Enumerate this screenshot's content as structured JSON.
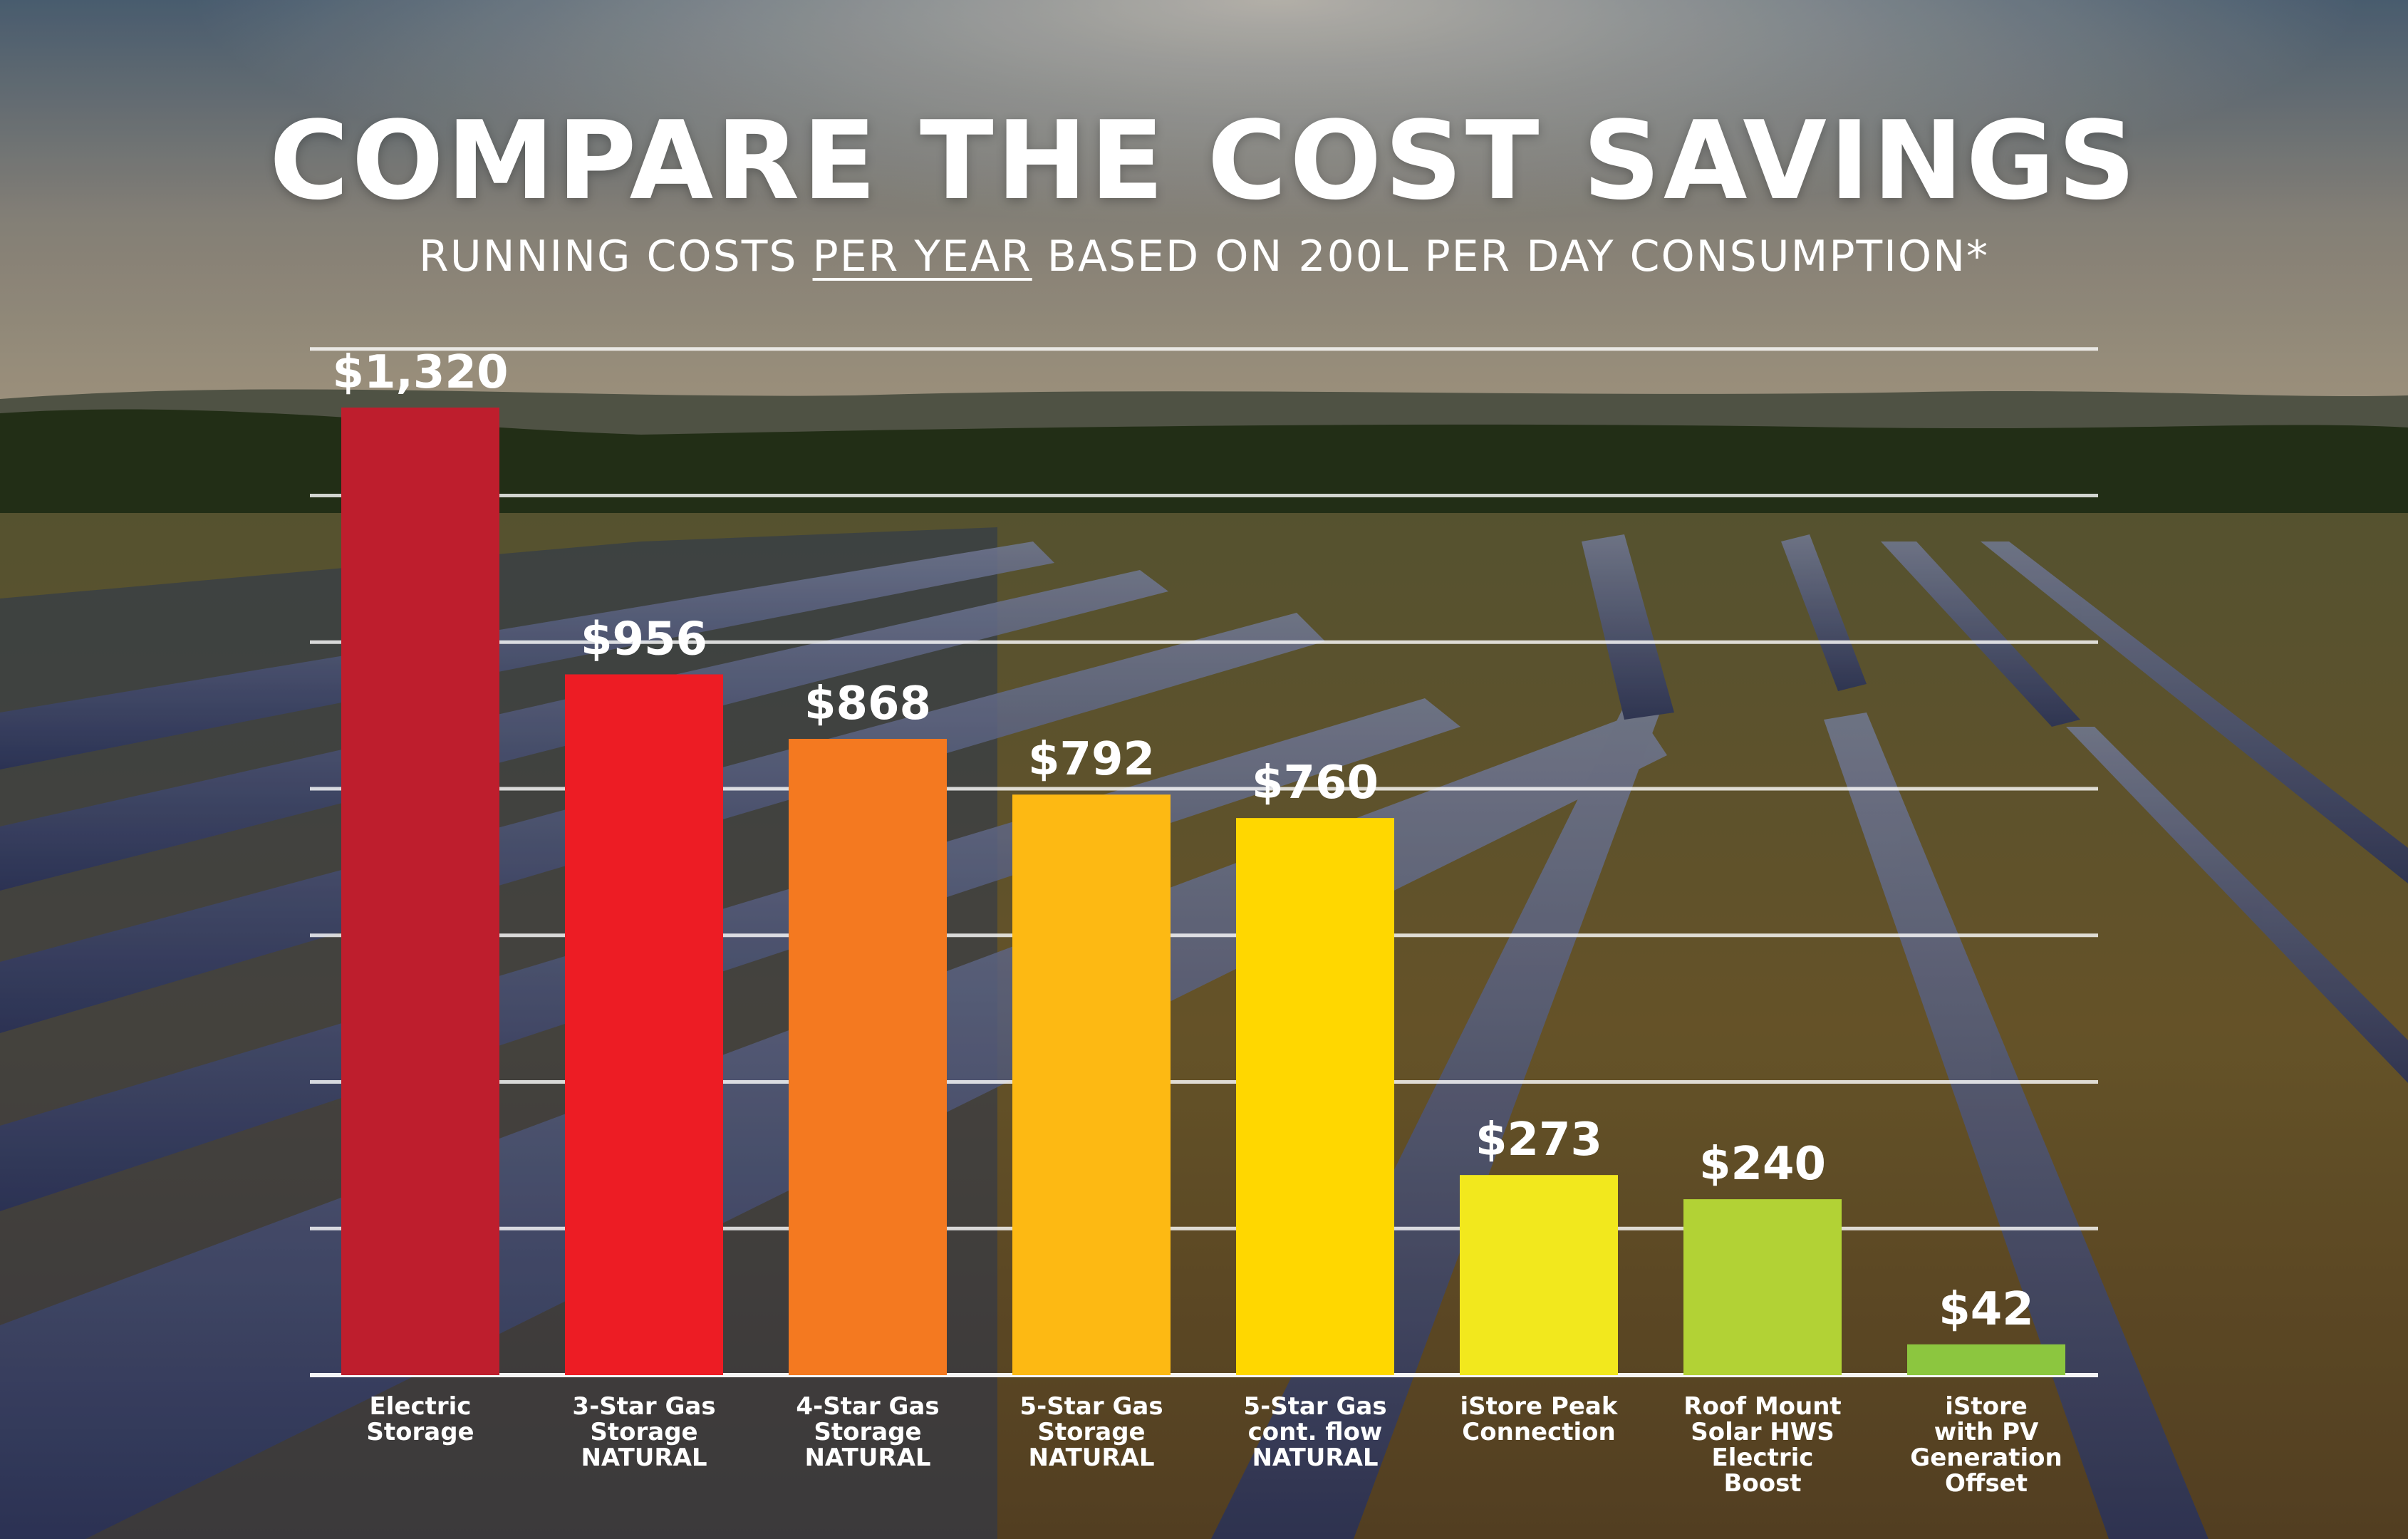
{
  "title": "COMPARE THE COST SAVINGS",
  "subtitle": {
    "before": "RUNNING COSTS ",
    "underlined": "PER YEAR",
    "after": " BASED ON 200L PER DAY CONSUMPTION*"
  },
  "chart_data": {
    "type": "bar",
    "title": "COMPARE THE COST SAVINGS",
    "subtitle": "RUNNING COSTS PER YEAR BASED ON 200L PER DAY CONSUMPTION*",
    "xlabel": "",
    "ylabel": "",
    "ylim": [
      0,
      1400
    ],
    "grid": true,
    "legend": "none",
    "categories": [
      [
        "Electric",
        "Storage"
      ],
      [
        "3-Star Gas",
        "Storage",
        "NATURAL"
      ],
      [
        "4-Star Gas",
        "Storage",
        "NATURAL"
      ],
      [
        "5-Star Gas",
        "Storage",
        "NATURAL"
      ],
      [
        "5-Star Gas",
        "cont. flow",
        "NATURAL"
      ],
      [
        "iStore Peak",
        "Connection"
      ],
      [
        "Roof Mount",
        "Solar HWS",
        "Electric",
        "Boost"
      ],
      [
        "iStore",
        "with PV",
        "Generation",
        "Offset"
      ]
    ],
    "values": [
      1320,
      956,
      868,
      792,
      760,
      273,
      240,
      42
    ],
    "value_labels": [
      "$1,320",
      "$956",
      "$868",
      "$792",
      "$760",
      "$273",
      "$240",
      "$42"
    ],
    "colors": [
      "#be1e2d",
      "#ed1c24",
      "#f47920",
      "#fdb913",
      "#ffd700",
      "#f2e81d",
      "#b2d235",
      "#8cc63f"
    ]
  }
}
